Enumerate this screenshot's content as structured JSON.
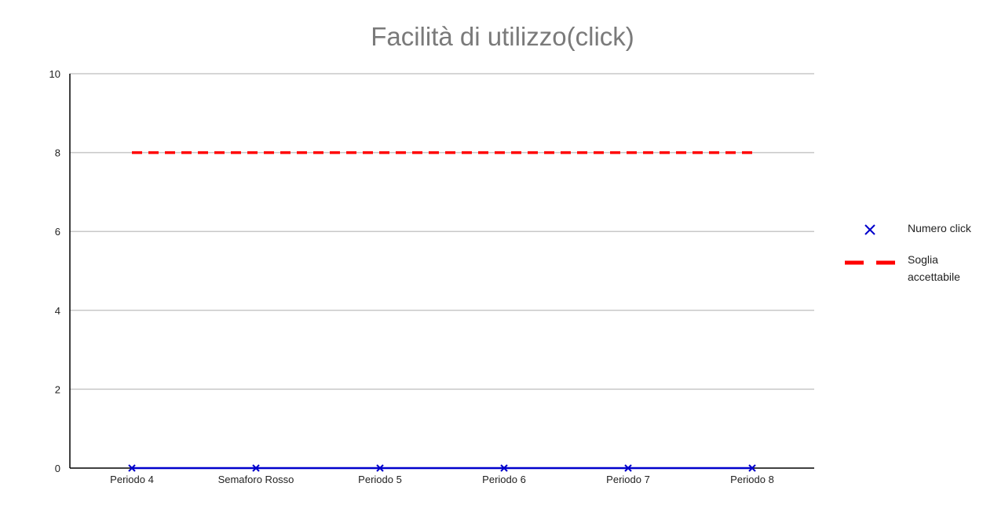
{
  "chart_data": {
    "type": "line",
    "title": "Facilità di utilizzo(click)",
    "xlabel": "",
    "ylabel": "",
    "categories": [
      "Periodo 4",
      "Semaforo Rosso",
      "Periodo 5",
      "Periodo 6",
      "Periodo 7",
      "Periodo 8"
    ],
    "ylim": [
      0,
      10
    ],
    "yticks": [
      "0",
      "2",
      "4",
      "6",
      "8",
      "10"
    ],
    "grid": true,
    "legend_position": "right",
    "series": [
      {
        "name": "Numero click",
        "values": [
          0,
          0,
          0,
          0,
          0,
          0
        ],
        "color": "#0000cc",
        "marker": "x",
        "line": "solid"
      },
      {
        "name": "Soglia accettabile",
        "name_lines": [
          "Soglia",
          "accettabile"
        ],
        "values": [
          8,
          8,
          8,
          8,
          8,
          8
        ],
        "color": "#ff0000",
        "marker": "none",
        "line": "dashed"
      }
    ]
  }
}
